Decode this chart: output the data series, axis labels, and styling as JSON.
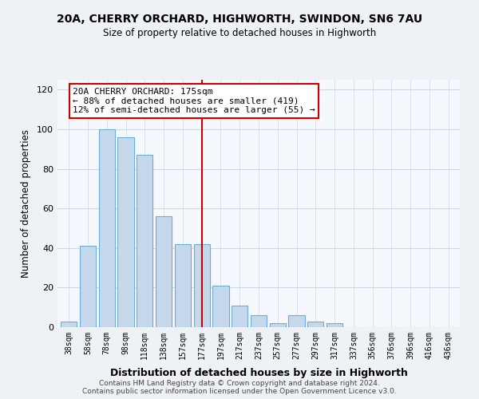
{
  "title": "20A, CHERRY ORCHARD, HIGHWORTH, SWINDON, SN6 7AU",
  "subtitle": "Size of property relative to detached houses in Highworth",
  "xlabel": "Distribution of detached houses by size in Highworth",
  "ylabel": "Number of detached properties",
  "bar_labels": [
    "38sqm",
    "58sqm",
    "78sqm",
    "98sqm",
    "118sqm",
    "138sqm",
    "157sqm",
    "177sqm",
    "197sqm",
    "217sqm",
    "237sqm",
    "257sqm",
    "277sqm",
    "297sqm",
    "317sqm",
    "337sqm",
    "356sqm",
    "376sqm",
    "396sqm",
    "416sqm",
    "436sqm"
  ],
  "bar_values": [
    3,
    41,
    100,
    96,
    87,
    56,
    42,
    42,
    21,
    11,
    6,
    2,
    6,
    3,
    2,
    0,
    0,
    0,
    0,
    0,
    0
  ],
  "bar_color": "#c6d9ec",
  "bar_edge_color": "#6aaed6",
  "vline_x_index": 7,
  "vline_color": "#cc0000",
  "annotation_line1": "20A CHERRY ORCHARD: 175sqm",
  "annotation_line2": "← 88% of detached houses are smaller (419)",
  "annotation_line3": "12% of semi-detached houses are larger (55) →",
  "annotation_box_color": "#ffffff",
  "annotation_box_edge": "#cc0000",
  "ylim": [
    0,
    125
  ],
  "yticks": [
    0,
    20,
    40,
    60,
    80,
    100,
    120
  ],
  "footer1": "Contains HM Land Registry data © Crown copyright and database right 2024.",
  "footer2": "Contains public sector information licensed under the Open Government Licence v3.0.",
  "bg_color": "#eef2f7",
  "plot_bg_color": "#f5f8fc",
  "grid_color": "#ccd9e8"
}
